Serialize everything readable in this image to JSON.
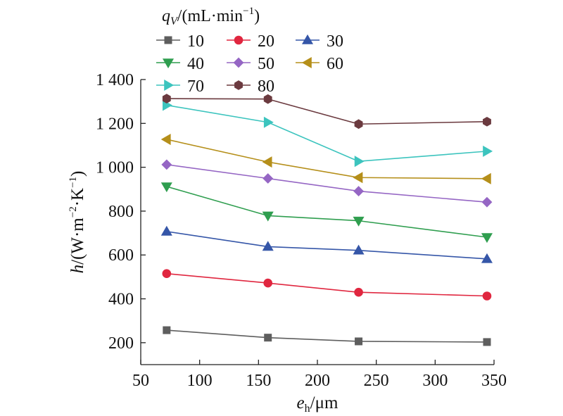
{
  "chart_data": {
    "type": "line",
    "legend_title": "q_V/(mL·min⁻¹)",
    "legend_title_parts": {
      "symbol": "q",
      "sub": "V",
      "rest": "/(mL·min",
      "sup": "−1",
      "close": ")"
    },
    "legend_placement": "top-left",
    "xlabel_parts": {
      "symbol": "e",
      "sub": "h",
      "rest": "/μm"
    },
    "ylabel_parts": {
      "a": "h/(W·m",
      "sup1": "−2",
      "b": "·K",
      "sup2": "−1",
      "c": ")"
    },
    "xlim": [
      50,
      350
    ],
    "ylim": [
      100,
      1400
    ],
    "x_ticks": [
      50,
      100,
      150,
      200,
      250,
      300,
      350
    ],
    "x_tick_labels": [
      "50",
      "100",
      "150",
      "200",
      "250",
      "300",
      "350"
    ],
    "y_ticks": [
      200,
      400,
      600,
      800,
      1000,
      1200,
      1400
    ],
    "y_tick_labels": [
      "200",
      "400",
      "600",
      "800",
      "1 000",
      "1 200",
      "1 400"
    ],
    "grid": false,
    "x": [
      72,
      158,
      235,
      344
    ],
    "series": [
      {
        "name": "10",
        "marker": "square",
        "color": "#5e5e5e",
        "values": [
          257,
          223,
          206,
          203
        ]
      },
      {
        "name": "20",
        "marker": "circle",
        "color": "#e0263f",
        "values": [
          515,
          472,
          430,
          413
        ]
      },
      {
        "name": "30",
        "marker": "triangle-up",
        "color": "#3556a8",
        "values": [
          707,
          638,
          621,
          582
        ]
      },
      {
        "name": "40",
        "marker": "triangle-down",
        "color": "#2f9e4f",
        "values": [
          912,
          779,
          756,
          681
        ]
      },
      {
        "name": "50",
        "marker": "diamond",
        "color": "#9566c4",
        "values": [
          1012,
          949,
          891,
          841
        ]
      },
      {
        "name": "60",
        "marker": "triangle-left",
        "color": "#b58f1a",
        "values": [
          1127,
          1024,
          953,
          948
        ]
      },
      {
        "name": "70",
        "marker": "triangle-right",
        "color": "#3cc4be",
        "values": [
          1283,
          1205,
          1027,
          1073
        ]
      },
      {
        "name": "80",
        "marker": "hexagon",
        "color": "#6b3a3f",
        "values": [
          1313,
          1311,
          1197,
          1208
        ]
      }
    ]
  }
}
